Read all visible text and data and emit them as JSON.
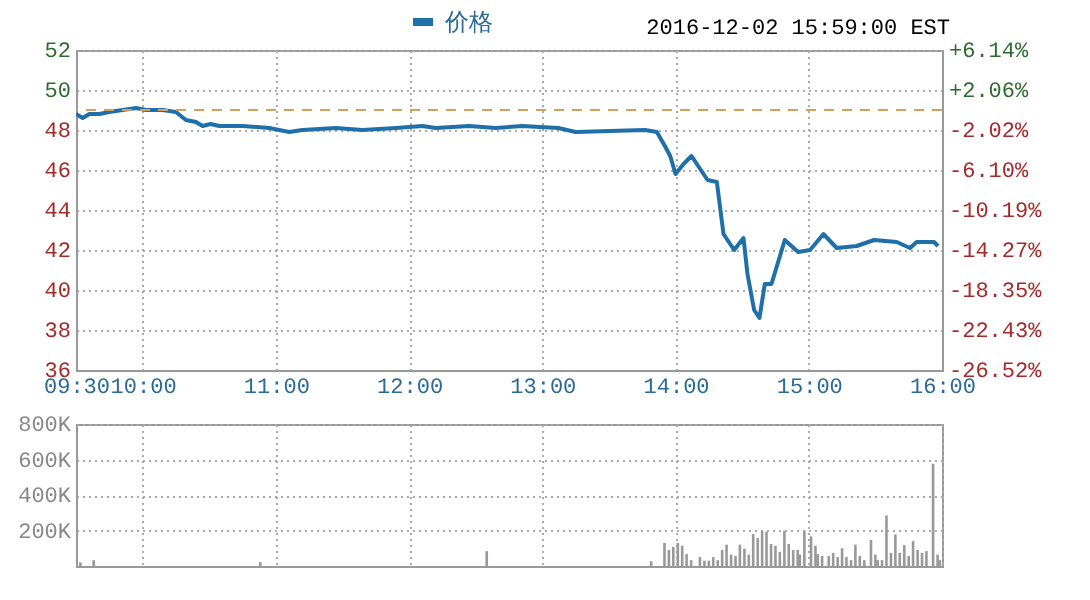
{
  "chart_data": [
    {
      "type": "line",
      "subtitle": "2016-12-02 15:59:00 EST",
      "legend": "top",
      "grid": true,
      "xlim": [
        9.5,
        16
      ],
      "xticks": [
        {
          "value": 9.5,
          "label": "09:30"
        },
        {
          "value": 10,
          "label": "10:00"
        },
        {
          "value": 11,
          "label": "11:00"
        },
        {
          "value": 12,
          "label": "12:00"
        },
        {
          "value": 13,
          "label": "13:00"
        },
        {
          "value": 14,
          "label": "14:00"
        },
        {
          "value": 15,
          "label": "15:00"
        },
        {
          "value": 16,
          "label": "16:00"
        }
      ],
      "ylim": [
        36,
        52
      ],
      "yticks": [
        36,
        38,
        40,
        42,
        44,
        46,
        48,
        50,
        52
      ],
      "y2lim": [
        -26.52,
        6.14
      ],
      "y2ticks": [
        {
          "value": -26.52,
          "label": "-26.52%"
        },
        {
          "value": -22.43,
          "label": "-22.43%"
        },
        {
          "value": -18.35,
          "label": "-18.35%"
        },
        {
          "value": -14.27,
          "label": "-14.27%"
        },
        {
          "value": -10.19,
          "label": "-10.19%"
        },
        {
          "value": -6.1,
          "label": "-6.10%"
        },
        {
          "value": -2.02,
          "label": "-2.02%"
        },
        {
          "value": 2.06,
          "label": "+2.06%"
        },
        {
          "value": 6.14,
          "label": "+6.14%"
        }
      ],
      "ref_lines": [
        {
          "axis": "y",
          "value": 49,
          "color": "#d4a060",
          "line_style": "dashed"
        }
      ],
      "series": [
        {
          "name": "价格",
          "color": "#1f6fa8",
          "x": [
            9.5,
            9.55,
            9.6,
            9.675,
            9.75,
            9.85,
            9.95,
            10.025,
            10.15,
            10.25,
            10.325,
            10.4,
            10.45,
            10.51,
            10.575,
            10.65,
            10.75,
            10.95,
            11.1,
            11.2,
            11.45,
            11.65,
            11.9,
            12.1,
            12.2,
            12.45,
            12.65,
            12.85,
            13.12,
            13.25,
            13.77,
            13.86,
            13.92,
            13.96,
            14.0,
            14.06,
            14.12,
            14.17,
            14.24,
            14.31,
            14.36,
            14.44,
            14.51,
            14.54,
            14.59,
            14.63,
            14.67,
            14.72,
            14.82,
            14.92,
            15.01,
            15.11,
            15.21,
            15.36,
            15.49,
            15.66,
            15.76,
            15.81,
            15.94,
            15.97
          ],
          "values": [
            48.8,
            48.6,
            48.8,
            48.8,
            48.9,
            49.0,
            49.1,
            49.0,
            49.0,
            48.9,
            48.5,
            48.4,
            48.2,
            48.3,
            48.2,
            48.2,
            48.2,
            48.1,
            47.9,
            48.0,
            48.1,
            48.0,
            48.1,
            48.2,
            48.1,
            48.2,
            48.1,
            48.2,
            48.1,
            47.9,
            48.0,
            47.9,
            47.2,
            46.7,
            45.8,
            46.3,
            46.7,
            46.2,
            45.5,
            45.4,
            42.8,
            42.0,
            42.6,
            40.8,
            39.0,
            38.6,
            40.3,
            40.3,
            42.5,
            41.9,
            42.0,
            42.8,
            42.1,
            42.2,
            42.5,
            42.4,
            42.1,
            42.4,
            42.4,
            42.2
          ]
        }
      ]
    },
    {
      "type": "bar",
      "grid": true,
      "tick_labels": "y",
      "xlim": [
        9.5,
        16
      ],
      "xticks": [
        9.5,
        10,
        11,
        12,
        13,
        14,
        15,
        16
      ],
      "ylim": [
        0,
        800000
      ],
      "yticks": [
        {
          "value": 0,
          "label": null
        },
        {
          "value": 200000,
          "label": "200K"
        },
        {
          "value": 400000,
          "label": "400K"
        },
        {
          "value": 600000,
          "label": "600K"
        },
        {
          "value": 800000,
          "label": "800K"
        }
      ],
      "series": [
        {
          "color": "#999999",
          "x": [
            9.533,
            9.633,
            10.883,
            12.583,
            13.817,
            13.917,
            13.95,
            13.983,
            14.017,
            14.05,
            14.083,
            14.117,
            14.183,
            14.217,
            14.25,
            14.283,
            14.317,
            14.35,
            14.383,
            14.417,
            14.45,
            14.483,
            14.517,
            14.55,
            14.583,
            14.617,
            14.65,
            14.683,
            14.717,
            14.75,
            14.783,
            14.817,
            14.85,
            14.883,
            14.917,
            14.933,
            14.967,
            15.017,
            15.05,
            15.067,
            15.1,
            15.15,
            15.183,
            15.217,
            15.25,
            15.283,
            15.317,
            15.35,
            15.383,
            15.417,
            15.467,
            15.5,
            15.517,
            15.55,
            15.583,
            15.617,
            15.65,
            15.683,
            15.717,
            15.75,
            15.783,
            15.817,
            15.85,
            15.883,
            15.933,
            15.967,
            15.983
          ],
          "values": [
            20000,
            33000,
            23000,
            84000,
            27000,
            130000,
            90000,
            107000,
            130000,
            114000,
            67000,
            33000,
            50000,
            30000,
            30000,
            50000,
            33000,
            90000,
            120000,
            64000,
            57000,
            120000,
            97000,
            64000,
            180000,
            157000,
            198000,
            194000,
            124000,
            114000,
            80000,
            198000,
            124000,
            90000,
            90000,
            64000,
            198000,
            167000,
            114000,
            67000,
            57000,
            57000,
            74000,
            50000,
            100000,
            50000,
            33000,
            120000,
            57000,
            33000,
            147000,
            64000,
            33000,
            33000,
            285000,
            74000,
            178000,
            74000,
            117000,
            57000,
            140000,
            90000,
            74000,
            84000,
            576000,
            64000,
            33000
          ]
        }
      ]
    }
  ]
}
